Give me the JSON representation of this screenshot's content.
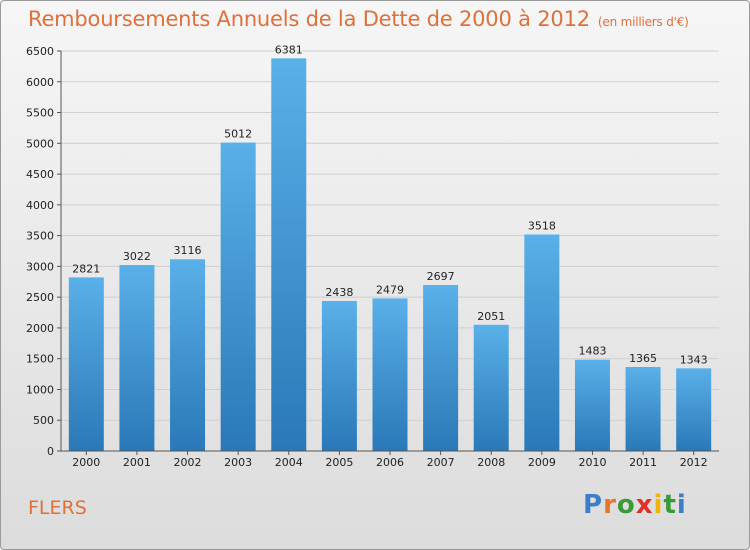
{
  "header": {
    "title": "Remboursements Annuels de la Dette de 2000 à 2012",
    "subtitle": "(en milliers d'€)"
  },
  "commune": "FLERS",
  "logo": {
    "letters": [
      {
        "char": "P",
        "color": "#3a7fc8"
      },
      {
        "char": "r",
        "color": "#e8742a"
      },
      {
        "char": "o",
        "color": "#3a9a3a"
      },
      {
        "char": "x",
        "color": "#e0302a"
      },
      {
        "char": "i",
        "color": "#f0b400"
      },
      {
        "char": "t",
        "color": "#3a9a3a"
      },
      {
        "char": "i",
        "color": "#3a7fc8"
      }
    ]
  },
  "chart_data": {
    "type": "bar",
    "title": "Remboursements Annuels de la Dette de 2000 à 2012",
    "subtitle": "(en milliers d'€)",
    "categories": [
      "2000",
      "2001",
      "2002",
      "2003",
      "2004",
      "2005",
      "2006",
      "2007",
      "2008",
      "2009",
      "2010",
      "2011",
      "2012"
    ],
    "values": [
      2821,
      3022,
      3116,
      5012,
      6381,
      2438,
      2479,
      2697,
      2051,
      3518,
      1483,
      1365,
      1343
    ],
    "ylim": [
      0,
      6500
    ],
    "yticks": [
      0,
      500,
      1000,
      1500,
      2000,
      2500,
      3000,
      3500,
      4000,
      4500,
      5000,
      5500,
      6000,
      6500
    ],
    "grid": true,
    "bar_color_top": "#5ab0e8",
    "bar_color_bottom": "#2a78b8"
  }
}
